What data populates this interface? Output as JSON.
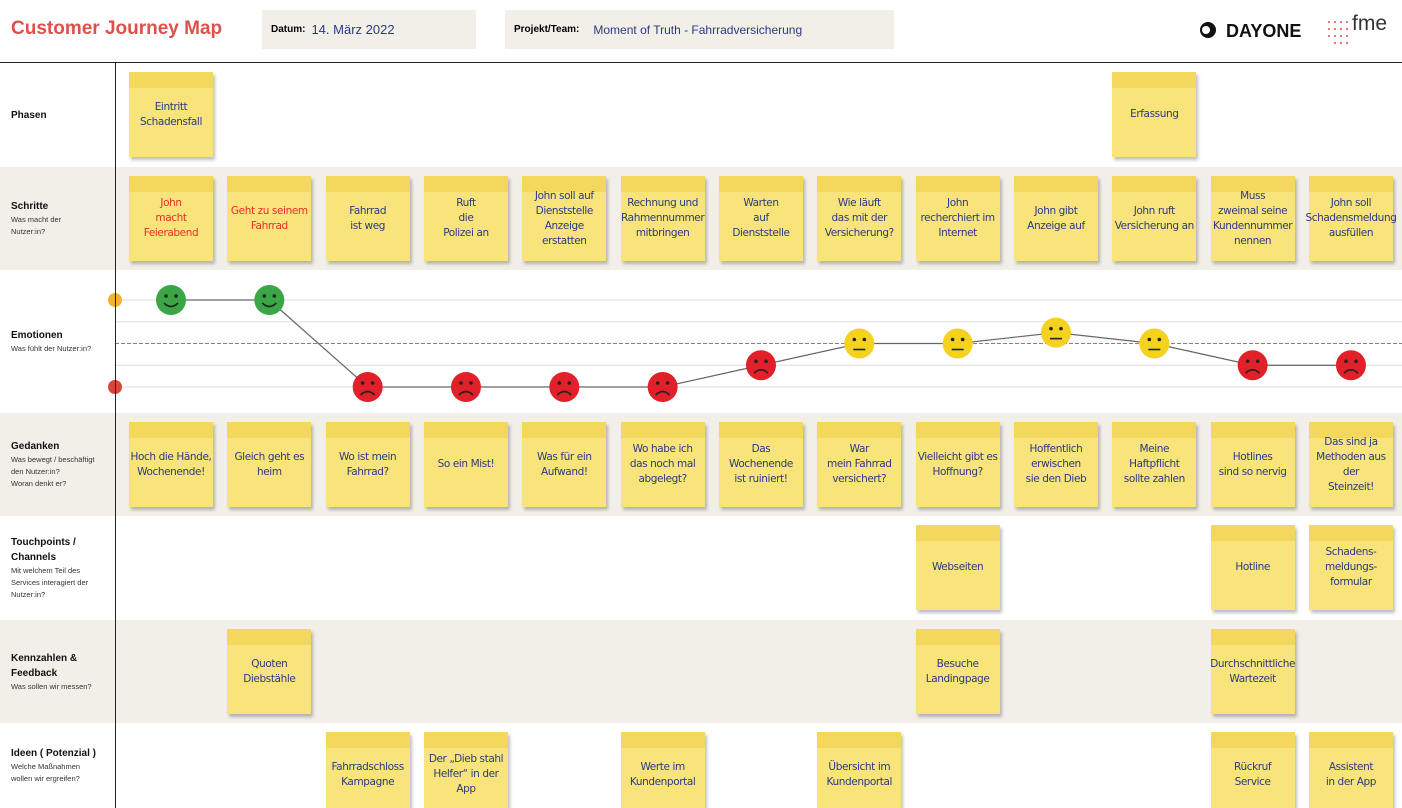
{
  "header": {
    "title": "Customer Journey Map",
    "date_label": "Datum:",
    "date": "14. März 2022",
    "project_label": "Projekt/Team:",
    "project": "Moment of Truth - Fahrradversicherung",
    "logos": [
      "DAYONE",
      "fme"
    ]
  },
  "lanes": [
    {
      "label": "Phasen",
      "notes": [
        "Eintritt\nSchadensfall",
        null,
        null,
        null,
        null,
        null,
        null,
        null,
        null,
        null,
        "Erfassung",
        null,
        null
      ]
    },
    {
      "label": "Schritte",
      "sublabel": "Was macht der\nNutzer:in?",
      "notes": [
        "John\nmacht\nFeierabend",
        "Geht zu seinem\nFahrrad",
        "Fahrrad\nist weg",
        "Ruft\ndie\nPolizei an",
        "John soll auf\nDienststelle\nAnzeige\nerstatten",
        "Rechnung und\nRahmennummer\nmitbringen",
        "Warten\nauf\nDienststelle",
        "Wie läuft\ndas mit der\nVersicherung?",
        "John\nrecherchiert im\nInternet",
        "John gibt\nAnzeige auf",
        "John ruft\nVersicherung an",
        "Muss\nzweimal seine\nKundennummer\nnennen",
        "John soll\nSchadensmeldung\nausfüllen"
      ],
      "text_colors": [
        "#e5302a",
        "#e5302a",
        null,
        null,
        null,
        null,
        null,
        null,
        null,
        null,
        null,
        null,
        null
      ]
    },
    {
      "label": "Emotionen",
      "sublabel": "Was fühlt der Nutzer:in?",
      "values": [
        2,
        2,
        -2,
        -2,
        -2,
        -2,
        -1,
        0,
        0,
        0.5,
        0,
        -1,
        -1
      ],
      "ylim": [
        -2,
        2
      ],
      "yticks": [
        -2,
        -1,
        0,
        1,
        2
      ]
    },
    {
      "label": "Gedanken",
      "sublabel": "Was bewegt / beschäftigt\nden Nutzer:in?\nWoran denkt er?",
      "notes": [
        "Hoch die Hände,\nWochenende!",
        "Gleich geht es\nheim",
        "Wo ist mein\nFahrrad?",
        "So ein Mist!",
        "Was für ein\nAufwand!",
        "Wo habe ich\ndas noch mal\nabgelegt?",
        "Das Wochenende\nist ruiniert!",
        "War\nmein Fahrrad\nversichert?",
        "Vielleicht gibt es\nHoffnung?",
        "Hoffentlich\nerwischen\nsie den Dieb",
        "Meine\nHaftpflicht\nsollte zahlen",
        "Hotlines\nsind so nervig",
        "Das sind ja\nMethoden aus der\nSteinzeit!"
      ]
    },
    {
      "label": "Touchpoints /\nChannels",
      "sublabel": "Mit welchem Teil des\nServices interagiert der\nNutzer:in?",
      "notes": [
        null,
        null,
        null,
        null,
        null,
        null,
        null,
        null,
        "Webseiten",
        null,
        null,
        "Hotline",
        "Schadens-\nmeldungs-\nformular"
      ]
    },
    {
      "label": "Kennzahlen &\nFeedback",
      "sublabel": "Was sollen wir messen?",
      "notes": [
        null,
        "Quoten\nDiebstähle",
        null,
        null,
        null,
        null,
        null,
        null,
        "Besuche\nLandingpage",
        null,
        null,
        "Durchschnittliche\nWartezeit",
        null
      ]
    },
    {
      "label": "Ideen ( Potenzial )",
      "sublabel": "Welche Maßnahmen\nwollen wir ergreifen?",
      "notes": [
        null,
        null,
        "Fahrradschloss\nKampagne",
        "Der „Dieb stahl\nHelfer“ in der\nApp",
        null,
        "Werte im\nKundenportal",
        null,
        "Übersicht im\nKundenportal",
        null,
        null,
        null,
        "Rückruf\nService",
        "Assistent\nin der App"
      ]
    }
  ]
}
